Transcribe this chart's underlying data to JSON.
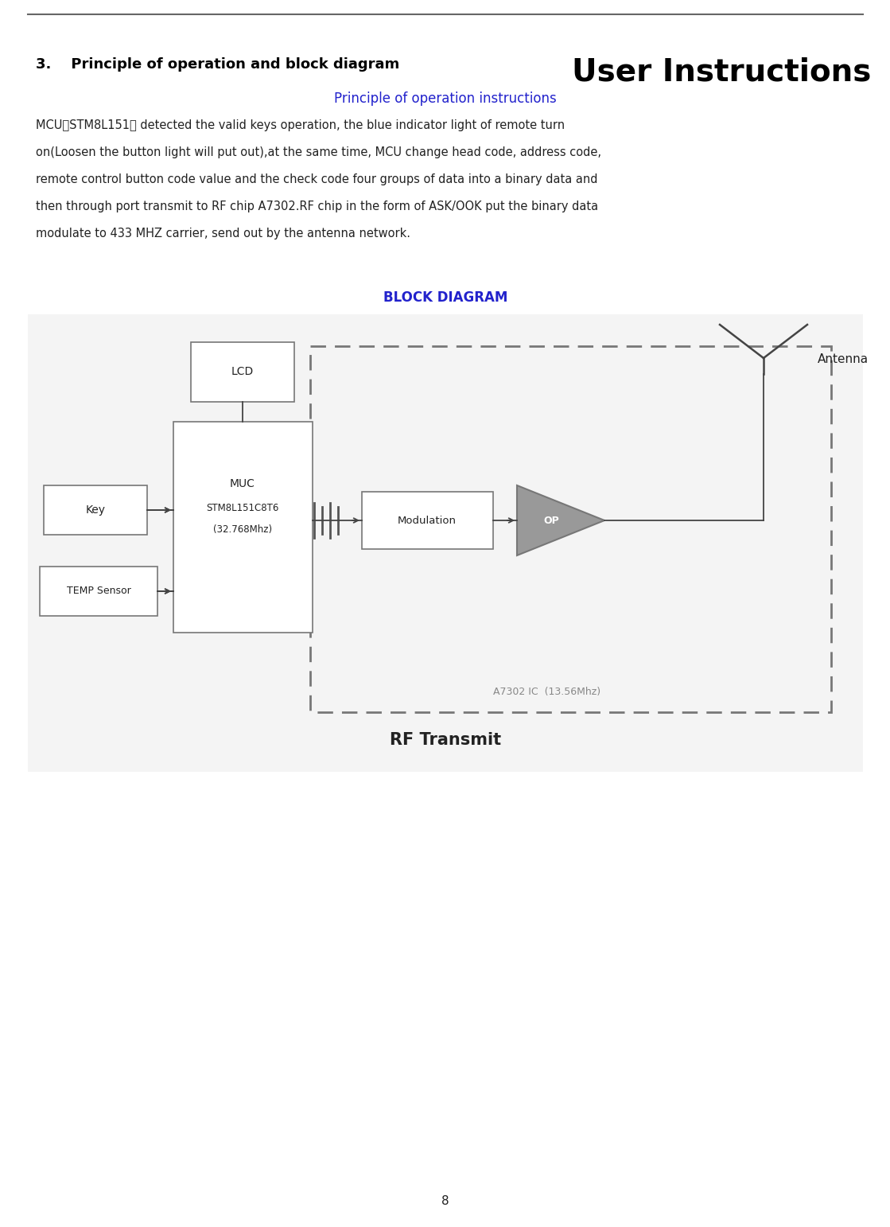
{
  "page_number": "8",
  "header_line_color": "#666666",
  "title_text": "User Instructions",
  "title_color": "#000000",
  "title_fontsize": 28,
  "section_number": "3.",
  "section_title": "Principle of operation and block diagram",
  "section_fontsize": 13,
  "subtitle_text": "Principle of operation instructions",
  "subtitle_color": "#2222cc",
  "subtitle_fontsize": 12,
  "body_text_lines": [
    "MCU（STM8L151） detected the valid keys operation, the blue indicator light of remote turn",
    "on(Loosen the button light will put out),at the same time, MCU change head code, address code,",
    "remote control button code value and the check code four groups of data into a binary data and",
    "then through port transmit to RF chip A7302.RF chip in the form of ASK/OOK put the binary data",
    "modulate to 433 MHZ carrier, send out by the antenna network."
  ],
  "body_fontsize": 10.5,
  "block_diagram_title": "BLOCK DIAGRAM",
  "block_diagram_color": "#2222cc",
  "block_diagram_fontsize": 12,
  "rf_transmit_text": "RF Transmit",
  "rf_transmit_fontsize": 15,
  "bg_box_color": "#f4f4f4",
  "dashed_box_color": "#777777",
  "block_border_color": "#777777",
  "block_fill_color": "#ffffff",
  "op_fill_color": "#999999",
  "antenna_color": "#444444",
  "arrow_color": "#444444",
  "text_color": "#222222",
  "gray_text_color": "#888888"
}
